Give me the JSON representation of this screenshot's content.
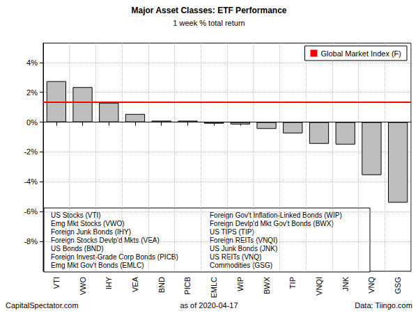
{
  "chart_data": {
    "type": "bar",
    "title": "Major Asset Classes: ETF Performance",
    "subtitle": "1 week % total return",
    "categories": [
      "VTI",
      "VWO",
      "IHY",
      "VEA",
      "BND",
      "PICB",
      "EMLC",
      "WIP",
      "BWX",
      "TIP",
      "VNQI",
      "JNK",
      "VNQ",
      "GSG"
    ],
    "values": [
      2.75,
      2.35,
      1.3,
      0.55,
      0.1,
      0.1,
      -0.1,
      -0.15,
      -0.45,
      -0.75,
      -1.45,
      -1.5,
      -3.55,
      -5.4
    ],
    "color": "#bebebe",
    "ylim": [
      -10,
      5.3
    ],
    "yticks": [
      {
        "value": -8,
        "label": "-8%"
      },
      {
        "value": -6,
        "label": "-6%"
      },
      {
        "value": -4,
        "label": "-4%"
      },
      {
        "value": -2,
        "label": "-2%"
      },
      {
        "value": 0,
        "label": "0%"
      },
      {
        "value": 2,
        "label": "2%"
      },
      {
        "value": 4,
        "label": "4%"
      }
    ],
    "grid": true,
    "legend": "top-right",
    "reference_line": {
      "name": "Global Market Index (F)",
      "value": 1.35,
      "color": "#ff0000"
    },
    "key": [
      "US Stocks (VTI)",
      "Emg Mkt Stocks (VWO)",
      "Foreign Junk Bonds (IHY)",
      "Foreign Stocks Devlp'd Mkts (VEA)",
      "US Bonds (BND)",
      "Foreign Invest-Grade Corp Bonds (PICB)",
      "Emg Mkt Gov't Bonds (EMLC)",
      "Foreign Gov't Inflation-Linked Bonds (WIP)",
      "Foreign Devlp'd Mkt Gov't Bonds (BWX)",
      "US TIPS (TIP)",
      "Foreign REITs (VNQI)",
      "US Junk Bonds (JNK)",
      "US REITs (VNQ)",
      "Commodities (GSG)"
    ],
    "footer": {
      "left": "CapitalSpectator.com",
      "center": "as of 2020-04-17",
      "right": "Data: Tiingo.com"
    }
  }
}
